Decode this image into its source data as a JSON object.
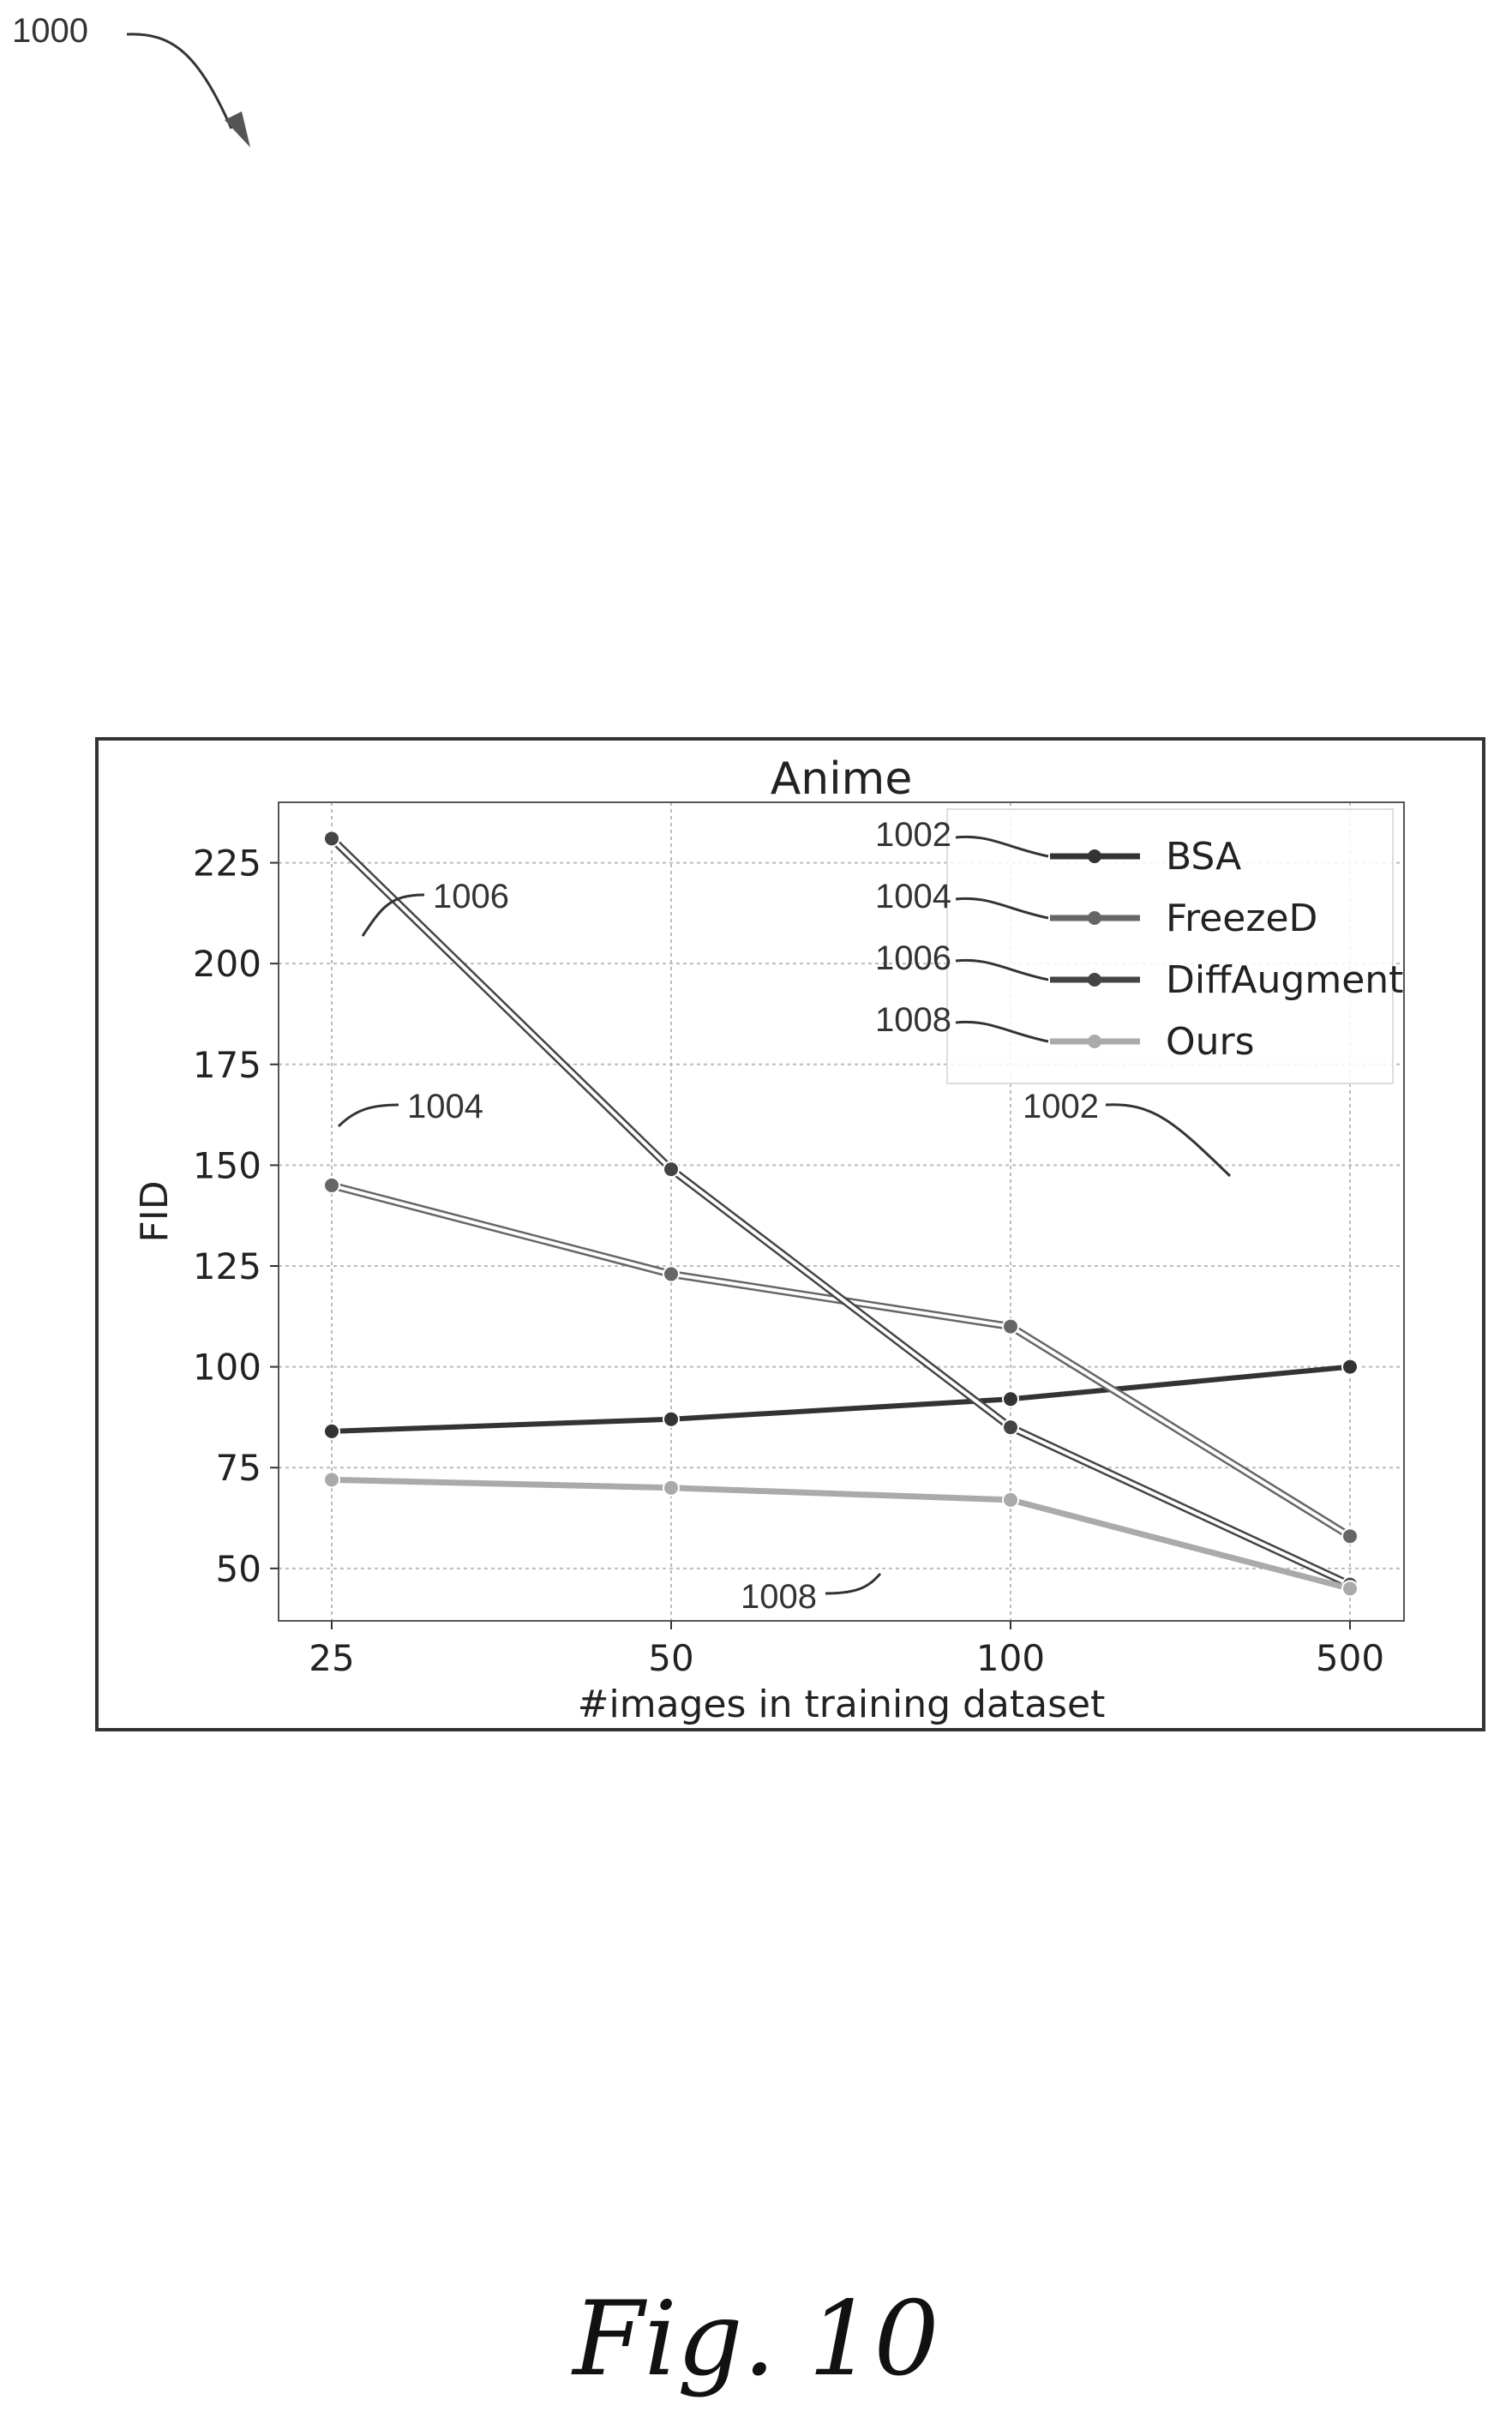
{
  "figure_ref": "1000",
  "caption": "Fig. 10",
  "chart_data": {
    "type": "line",
    "title": "Anime",
    "xlabel": "#images in training dataset",
    "ylabel": "FID",
    "categories": [
      "25",
      "50",
      "100",
      "500"
    ],
    "x_scale": "categorical (log-spaced)",
    "ylim": [
      37,
      240
    ],
    "yticks": [
      50,
      75,
      100,
      125,
      150,
      175,
      200,
      225
    ],
    "grid": true,
    "legend_position": "top-right",
    "series": [
      {
        "name": "BSA",
        "ref": "1002",
        "values": [
          84,
          87,
          92,
          100
        ],
        "color": "#333333"
      },
      {
        "name": "FreezeD",
        "ref": "1004",
        "values": [
          145,
          123,
          110,
          58
        ],
        "color": "#666666"
      },
      {
        "name": "DiffAugment",
        "ref": "1006",
        "values": [
          231,
          149,
          85,
          46
        ],
        "color": "#444444"
      },
      {
        "name": "Ours",
        "ref": "1008",
        "values": [
          72,
          70,
          67,
          45
        ],
        "color": "#aaaaaa"
      }
    ],
    "annotations": [
      {
        "text": "1006",
        "series": "DiffAugment"
      },
      {
        "text": "1004",
        "series": "FreezeD"
      },
      {
        "text": "1002",
        "series": "BSA"
      },
      {
        "text": "1008",
        "series": "Ours"
      }
    ]
  }
}
